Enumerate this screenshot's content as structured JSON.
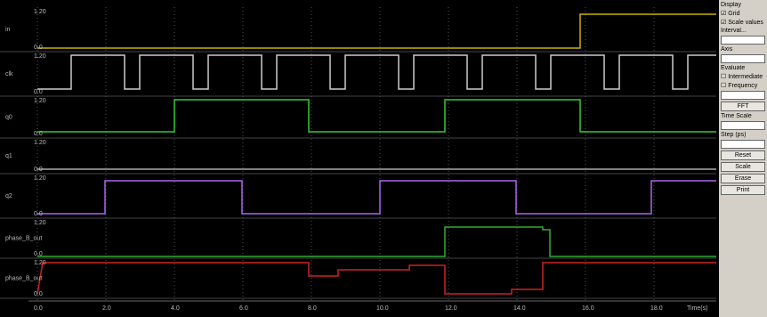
{
  "channels": [
    {
      "name": "in",
      "top": "1.20",
      "bottom": "0.0"
    },
    {
      "name": "clk",
      "top": "1.20",
      "bottom": "0.0"
    },
    {
      "name": "q0",
      "top": "1.20",
      "bottom": "0.0"
    },
    {
      "name": "q1",
      "top": "1.20",
      "bottom": "0.0"
    },
    {
      "name": "q2",
      "top": "1.20",
      "bottom": "0.0"
    },
    {
      "name": "phase_B_out",
      "top": "1.20",
      "bottom": "0.0"
    },
    {
      "name": "phase_B_out",
      "top": "1.20",
      "bottom": "0.0"
    }
  ],
  "time_axis": {
    "ticks": [
      "0.0",
      "2.0",
      "4.0",
      "6.0",
      "8.0",
      "10.0",
      "12.0",
      "14.0",
      "16.0",
      "18.0"
    ],
    "label": "Time(s)"
  },
  "panel": {
    "display": "Display",
    "grid": "Grid",
    "scale": "Scale values",
    "interval": "Interval...",
    "axis": "Axis",
    "evaluate": "Evaluate",
    "intermediate": "Intermediate",
    "frequency": "Frequency",
    "fft": "FFT",
    "time_scale": "Time Scale",
    "step": "Step (ps)",
    "reset": "Reset",
    "scale_btn": "Scale",
    "erase": "Erase",
    "print": "Print"
  }
}
